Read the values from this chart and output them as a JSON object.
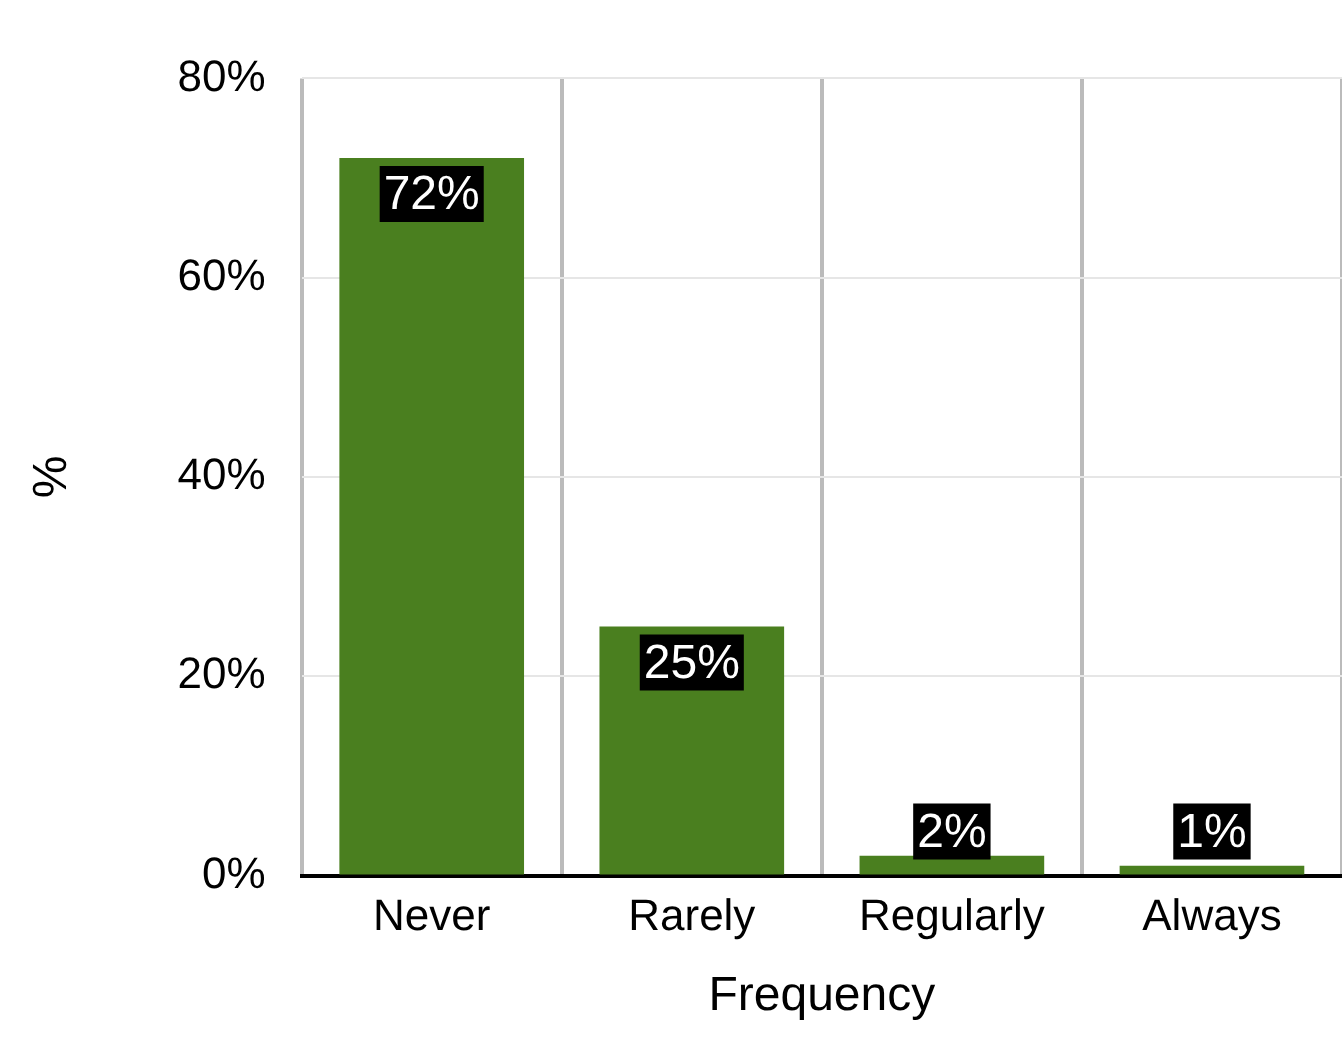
{
  "chart_data": {
    "type": "bar",
    "xlabel": "Frequency",
    "ylabel": "%",
    "categories": [
      "Never",
      "Rarely",
      "Regularly",
      "Always"
    ],
    "values": [
      72,
      25,
      2,
      1
    ],
    "color": "#4a7f1f",
    "value_labels": [
      "72%",
      "25%",
      "2%",
      "1%"
    ],
    "ylim": [
      0,
      80
    ],
    "yticks": [
      {
        "value": 0,
        "label": "0%"
      },
      {
        "value": 20,
        "label": "20%"
      },
      {
        "value": 40,
        "label": "40%"
      },
      {
        "value": 60,
        "label": "60%"
      },
      {
        "value": 80,
        "label": "80%"
      }
    ],
    "grid": true,
    "legend": false
  }
}
